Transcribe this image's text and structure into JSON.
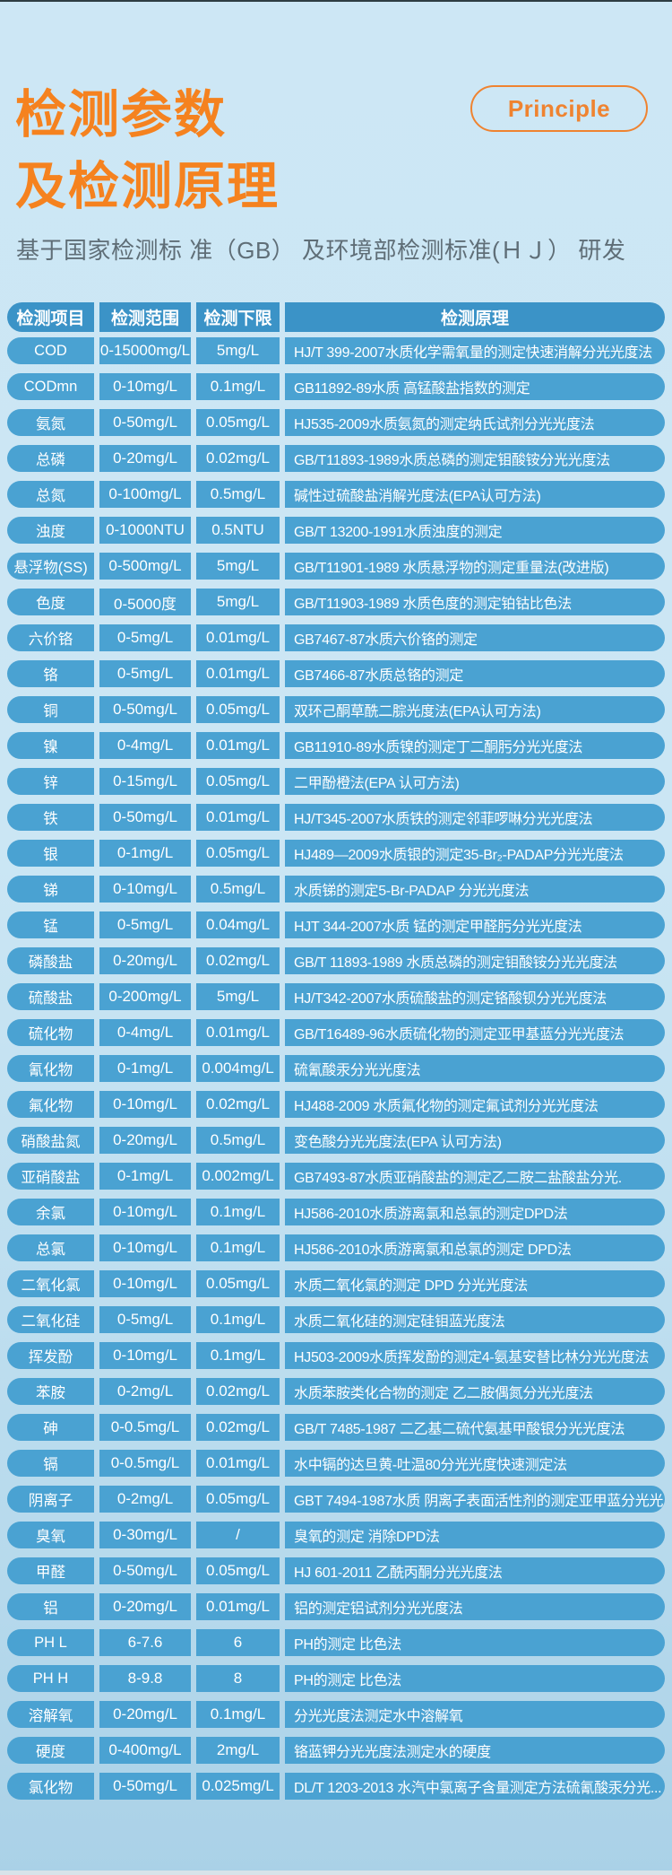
{
  "header": {
    "title_line1": "检测参数",
    "title_line2": "及检测原理",
    "badge_label": "Principle",
    "subtitle": "基于国家检测标 准（GB） 及环境部检测标准(ＨＪ） 研发"
  },
  "colors": {
    "accent_orange": "#f5821f",
    "badge_orange": "#ef8330",
    "table_header_blue": "#3b93c7",
    "table_row_blue": "#4aa2d2",
    "background_top": "#cde7f5",
    "background_bottom": "#aad1e7",
    "subtitle_text": "#5f6e77",
    "cell_text": "#ffffff"
  },
  "table": {
    "columns": [
      "检测项目",
      "检测范围",
      "检测下限",
      "检测原理"
    ],
    "rows": [
      {
        "item": "COD",
        "range": "0-15000mg/L",
        "limit": "5mg/L",
        "principle": "HJ/T 399-2007水质化学需氧量的测定快速消解分光光度法"
      },
      {
        "item": "CODmn",
        "range": "0-10mg/L",
        "limit": "0.1mg/L",
        "principle": "GB11892-89水质 高锰酸盐指数的测定"
      },
      {
        "item": "氨氮",
        "range": "0-50mg/L",
        "limit": "0.05mg/L",
        "principle": "HJ535-2009水质氨氮的测定纳氏试剂分光光度法"
      },
      {
        "item": "总磷",
        "range": "0-20mg/L",
        "limit": "0.02mg/L",
        "principle": "GB/T11893-1989水质总磷的测定钼酸铵分光光度法"
      },
      {
        "item": "总氮",
        "range": "0-100mg/L",
        "limit": "0.5mg/L",
        "principle": "碱性过硫酸盐消解光度法(EPA认可方法)"
      },
      {
        "item": "浊度",
        "range": "0-1000NTU",
        "limit": "0.5NTU",
        "principle": "GB/T 13200-1991水质浊度的测定"
      },
      {
        "item": "悬浮物(SS)",
        "range": "0-500mg/L",
        "limit": "5mg/L",
        "principle": "GB/T11901-1989 水质悬浮物的测定重量法(改进版)"
      },
      {
        "item": "色度",
        "range": "0-5000度",
        "limit": "5mg/L",
        "principle": "GB/T11903-1989 水质色度的测定铂钴比色法"
      },
      {
        "item": "六价铬",
        "range": "0-5mg/L",
        "limit": "0.01mg/L",
        "principle": "GB7467-87水质六价铬的测定"
      },
      {
        "item": "铬",
        "range": "0-5mg/L",
        "limit": "0.01mg/L",
        "principle": "GB7466-87水质总铬的测定"
      },
      {
        "item": "铜",
        "range": "0-50mg/L",
        "limit": "0.05mg/L",
        "principle": "双环己酮草酰二腙光度法(EPA认可方法)"
      },
      {
        "item": "镍",
        "range": "0-4mg/L",
        "limit": "0.01mg/L",
        "principle": "GB11910-89水质镍的测定丁二酮肟分光光度法"
      },
      {
        "item": "锌",
        "range": "0-15mg/L",
        "limit": "0.05mg/L",
        "principle": "二甲酚橙法(EPA 认可方法)"
      },
      {
        "item": "铁",
        "range": "0-50mg/L",
        "limit": "0.01mg/L",
        "principle": "HJ/T345-2007水质铁的测定邻菲啰啉分光光度法"
      },
      {
        "item": "银",
        "range": "0-1mg/L",
        "limit": "0.05mg/L",
        "principle": "HJ489—2009水质银的测定35-Br₂-PADAP分光光度法"
      },
      {
        "item": "锑",
        "range": "0-10mg/L",
        "limit": "0.5mg/L",
        "principle": "水质锑的测定5-Br-PADAP 分光光度法"
      },
      {
        "item": "锰",
        "range": "0-5mg/L",
        "limit": "0.04mg/L",
        "principle": "HJT 344-2007水质 锰的测定甲醛肟分光光度法"
      },
      {
        "item": "磷酸盐",
        "range": "0-20mg/L",
        "limit": "0.02mg/L",
        "principle": "GB/T 11893-1989 水质总磷的测定钼酸铵分光光度法"
      },
      {
        "item": "硫酸盐",
        "range": "0-200mg/L",
        "limit": "5mg/L",
        "principle": "HJ/T342-2007水质硫酸盐的测定铬酸钡分光光度法"
      },
      {
        "item": "硫化物",
        "range": "0-4mg/L",
        "limit": "0.01mg/L",
        "principle": "GB/T16489-96水质硫化物的测定亚甲基蓝分光光度法"
      },
      {
        "item": "氰化物",
        "range": "0-1mg/L",
        "limit": "0.004mg/L",
        "principle": "硫氰酸汞分光光度法"
      },
      {
        "item": "氟化物",
        "range": "0-10mg/L",
        "limit": "0.02mg/L",
        "principle": "HJ488-2009 水质氟化物的测定氟试剂分光光度法"
      },
      {
        "item": "硝酸盐氮",
        "range": "0-20mg/L",
        "limit": "0.5mg/L",
        "principle": "变色酸分光光度法(EPA 认可方法)"
      },
      {
        "item": "亚硝酸盐",
        "range": "0-1mg/L",
        "limit": "0.002mg/L",
        "principle": "GB7493-87水质亚硝酸盐的测定乙二胺二盐酸盐分光."
      },
      {
        "item": "余氯",
        "range": "0-10mg/L",
        "limit": "0.1mg/L",
        "principle": "HJ586-2010水质游离氯和总氯的测定DPD法"
      },
      {
        "item": "总氯",
        "range": "0-10mg/L",
        "limit": "0.1mg/L",
        "principle": "HJ586-2010水质游离氯和总氯的测定 DPD法"
      },
      {
        "item": "二氧化氯",
        "range": "0-10mg/L",
        "limit": "0.05mg/L",
        "principle": "水质二氧化氯的测定 DPD 分光光度法"
      },
      {
        "item": "二氧化硅",
        "range": "0-5mg/L",
        "limit": "0.1mg/L",
        "principle": "水质二氧化硅的测定硅钼蓝光度法"
      },
      {
        "item": "挥发酚",
        "range": "0-10mg/L",
        "limit": "0.1mg/L",
        "principle": "HJ503-2009水质挥发酚的测定4-氨基安替比林分光光度法"
      },
      {
        "item": "苯胺",
        "range": "0-2mg/L",
        "limit": "0.02mg/L",
        "principle": "水质苯胺类化合物的测定 乙二胺偶氮分光光度法"
      },
      {
        "item": "砷",
        "range": "0-0.5mg/L",
        "limit": "0.02mg/L",
        "principle": "GB/T 7485-1987 二乙基二硫代氨基甲酸银分光光度法"
      },
      {
        "item": "镉",
        "range": "0-0.5mg/L",
        "limit": "0.01mg/L",
        "principle": "水中镉的达旦黄-吐温80分光光度快速测定法"
      },
      {
        "item": "阴离子",
        "range": "0-2mg/L",
        "limit": "0.05mg/L",
        "principle": "GBT 7494-1987水质 阴离子表面活性剂的测定亚甲蓝分光光..."
      },
      {
        "item": "臭氧",
        "range": "0-30mg/L",
        "limit": "/",
        "principle": "臭氧的测定 消除DPD法"
      },
      {
        "item": "甲醛",
        "range": "0-50mg/L",
        "limit": "0.05mg/L",
        "principle": "HJ 601-2011 乙酰丙酮分光光度法"
      },
      {
        "item": "铝",
        "range": "0-20mg/L",
        "limit": "0.01mg/L",
        "principle": "铝的测定铝试剂分光光度法"
      },
      {
        "item": "PH L",
        "range": "6-7.6",
        "limit": "6",
        "principle": "PH的测定 比色法"
      },
      {
        "item": "PH H",
        "range": "8-9.8",
        "limit": "8",
        "principle": "PH的测定 比色法"
      },
      {
        "item": "溶解氧",
        "range": "0-20mg/L",
        "limit": "0.1mg/L",
        "principle": "分光光度法测定水中溶解氧"
      },
      {
        "item": "硬度",
        "range": "0-400mg/L",
        "limit": "2mg/L",
        "principle": "铬蓝钾分光光度法测定水的硬度"
      },
      {
        "item": "氯化物",
        "range": "0-50mg/L",
        "limit": "0.025mg/L",
        "principle": "DL/T 1203-2013 水汽中氯离子含量测定方法硫氰酸汞分光..."
      }
    ]
  }
}
